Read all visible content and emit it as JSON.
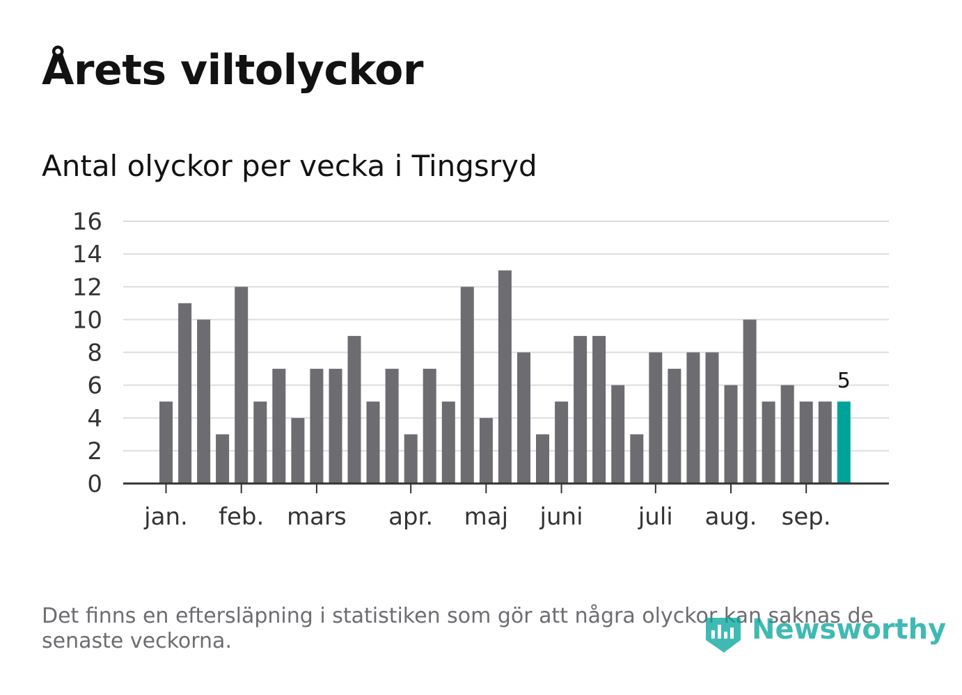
{
  "title": "Årets viltolyckor",
  "subtitle": "Antal olyckor per vecka i Tingsryd",
  "footnote": "Det finns en eftersläpning i statistiken som gör att några olyckor kan saknas de senaste veckorna.",
  "brand": "Newsworthy",
  "colors": {
    "bar": "#6d6c71",
    "highlight": "#00a39a",
    "grid": "#dddddd",
    "axis": "#333333",
    "text": "#333333"
  },
  "chart_data": {
    "type": "bar",
    "title": "Antal olyckor per vecka i Tingsryd",
    "xlabel": "",
    "ylabel": "",
    "ylim": [
      0,
      16
    ],
    "yticks": [
      0,
      2,
      4,
      6,
      8,
      10,
      12,
      14,
      16
    ],
    "grid": true,
    "weeks": [
      1,
      2,
      3,
      4,
      5,
      6,
      7,
      8,
      9,
      10,
      11,
      12,
      13,
      14,
      15,
      16,
      17,
      18,
      19,
      20,
      21,
      22,
      23,
      24,
      25,
      26,
      27,
      28,
      29,
      30,
      31,
      32,
      33,
      34,
      35,
      36,
      37
    ],
    "values": [
      5,
      11,
      10,
      3,
      12,
      5,
      7,
      4,
      7,
      7,
      9,
      5,
      7,
      3,
      7,
      5,
      12,
      4,
      13,
      8,
      3,
      5,
      9,
      9,
      6,
      3,
      8,
      7,
      8,
      8,
      6,
      10,
      5,
      6,
      5,
      5,
      5
    ],
    "highlight_last": true,
    "last_value_label": "5",
    "month_labels": [
      {
        "label": "jan.",
        "week": 1
      },
      {
        "label": "feb.",
        "week": 5
      },
      {
        "label": "mars",
        "week": 9
      },
      {
        "label": "apr.",
        "week": 14
      },
      {
        "label": "maj",
        "week": 18
      },
      {
        "label": "juni",
        "week": 22
      },
      {
        "label": "juli",
        "week": 27
      },
      {
        "label": "aug.",
        "week": 31
      },
      {
        "label": "sep.",
        "week": 35
      }
    ]
  }
}
